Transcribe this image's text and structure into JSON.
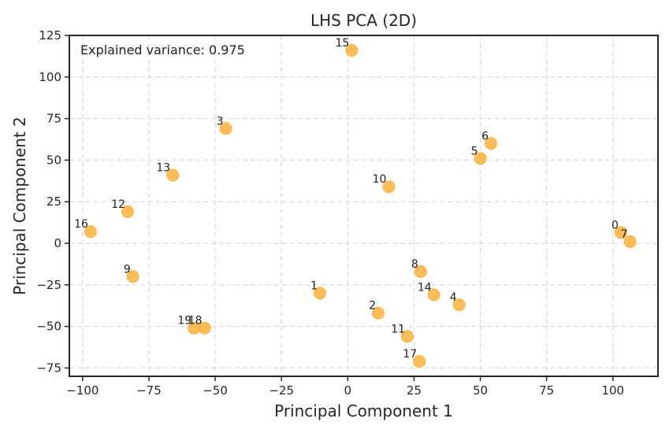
{
  "chart_data": {
    "type": "scatter",
    "title": "LHS PCA (2D)",
    "xlabel": "Principal Component 1",
    "ylabel": "Principal Component 2",
    "xlim": [
      -105,
      117
    ],
    "ylim": [
      -80,
      125
    ],
    "xticks": [
      -100,
      -75,
      -50,
      -25,
      0,
      25,
      50,
      75,
      100
    ],
    "yticks": [
      -75,
      -50,
      -25,
      0,
      25,
      50,
      75,
      100,
      125
    ],
    "grid": true,
    "annotation": "Explained variance: 0.975",
    "point_color": "#FBB13C",
    "points": [
      {
        "label": "0",
        "x": 103,
        "y": 6.5
      },
      {
        "label": "1",
        "x": -10.5,
        "y": -30
      },
      {
        "label": "2",
        "x": 11.5,
        "y": -42
      },
      {
        "label": "3",
        "x": -46,
        "y": 69
      },
      {
        "label": "4",
        "x": 42,
        "y": -37
      },
      {
        "label": "5",
        "x": 50,
        "y": 51
      },
      {
        "label": "6",
        "x": 54,
        "y": 60
      },
      {
        "label": "7",
        "x": 106.5,
        "y": 1
      },
      {
        "label": "8",
        "x": 27.5,
        "y": -17
      },
      {
        "label": "9",
        "x": -81,
        "y": -20
      },
      {
        "label": "10",
        "x": 15.5,
        "y": 34
      },
      {
        "label": "11",
        "x": 22.5,
        "y": -56
      },
      {
        "label": "12",
        "x": -83,
        "y": 19
      },
      {
        "label": "13",
        "x": -66,
        "y": 41
      },
      {
        "label": "14",
        "x": 32.5,
        "y": -31
      },
      {
        "label": "15",
        "x": 1.5,
        "y": 116
      },
      {
        "label": "16",
        "x": -97,
        "y": 7
      },
      {
        "label": "17",
        "x": 27,
        "y": -71
      },
      {
        "label": "18",
        "x": -54,
        "y": -51
      },
      {
        "label": "19",
        "x": -58,
        "y": -51
      }
    ]
  }
}
